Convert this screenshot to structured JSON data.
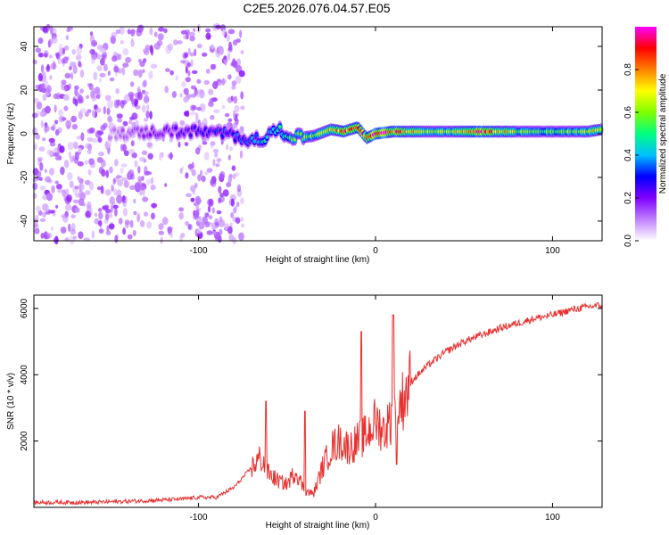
{
  "figure_title": "C2E5.2026.076.04.57.E05",
  "chart_data": [
    {
      "type": "heatmap",
      "title": "C2E5.2026.076.04.57.E05",
      "xlabel": "Height of straight line (km)",
      "ylabel": "Frequency (Hz)",
      "xlim": [
        -193,
        128
      ],
      "ylim": [
        -49,
        49
      ],
      "xticks": [
        -100,
        0,
        100
      ],
      "yticks": [
        -40,
        -20,
        0,
        20,
        40
      ],
      "colorbar": {
        "label": "Normalized spectral amplitude",
        "range": [
          0.0,
          1.0
        ],
        "ticks": [
          0.0,
          0.2,
          0.4,
          0.6,
          0.8
        ],
        "colors": [
          "#ffffff",
          "#c080ff",
          "#8000ff",
          "#0000ff",
          "#00c0ff",
          "#00ff80",
          "#80ff00",
          "#ffff00",
          "#ff8000",
          "#ff0000",
          "#ff00ff"
        ]
      },
      "ridge": {
        "x": [
          -150,
          -120,
          -100,
          -85,
          -75,
          -65,
          -55,
          -45,
          -35,
          -25,
          -18,
          -10,
          -5,
          0,
          10,
          20,
          40,
          60,
          80,
          100,
          120,
          128
        ],
        "frequency": [
          0,
          1,
          1,
          0,
          -2,
          -3,
          2,
          -2,
          -1,
          2,
          1,
          3,
          -2,
          0,
          1,
          1,
          1,
          1,
          1,
          1,
          1,
          2
        ],
        "amplitude": [
          0.1,
          0.2,
          0.25,
          0.3,
          0.35,
          0.4,
          0.45,
          0.55,
          0.6,
          0.7,
          0.8,
          0.9,
          0.85,
          0.95,
          0.9,
          0.7,
          0.6,
          0.9,
          0.6,
          0.55,
          0.65,
          0.7
        ]
      },
      "noise_region": {
        "x_from": -193,
        "x_to": -75,
        "amplitude": 0.15
      }
    },
    {
      "type": "line",
      "xlabel": "Height of straight line (km)",
      "ylabel": "SNR (10 * v/v)",
      "xlim": [
        -193,
        128
      ],
      "ylim": [
        0,
        6400
      ],
      "xticks": [
        -100,
        0,
        100
      ],
      "yticks": [
        2000,
        4000,
        6000
      ],
      "series": [
        {
          "name": "SNR",
          "color": "#e83030",
          "x": [
            -193,
            -160,
            -130,
            -110,
            -100,
            -90,
            -80,
            -70,
            -65,
            -60,
            -55,
            -50,
            -45,
            -40,
            -35,
            -30,
            -25,
            -20,
            -15,
            -10,
            -5,
            0,
            5,
            10,
            15,
            20,
            30,
            40,
            50,
            60,
            70,
            80,
            90,
            100,
            110,
            120,
            128
          ],
          "values": [
            150,
            150,
            200,
            250,
            300,
            300,
            600,
            1200,
            1500,
            1000,
            800,
            700,
            1100,
            500,
            400,
            1200,
            1800,
            2000,
            1800,
            2000,
            2200,
            2600,
            2300,
            2800,
            3200,
            3800,
            4300,
            4700,
            5000,
            5200,
            5400,
            5550,
            5700,
            5800,
            5950,
            6050,
            6100
          ]
        }
      ],
      "spikes": [
        {
          "x": -62,
          "y": 3200
        },
        {
          "x": -40,
          "y": 2900
        },
        {
          "x": -8,
          "y": 5300
        },
        {
          "x": 10,
          "y": 5800
        },
        {
          "x": 12,
          "y": 1300
        }
      ]
    }
  ]
}
